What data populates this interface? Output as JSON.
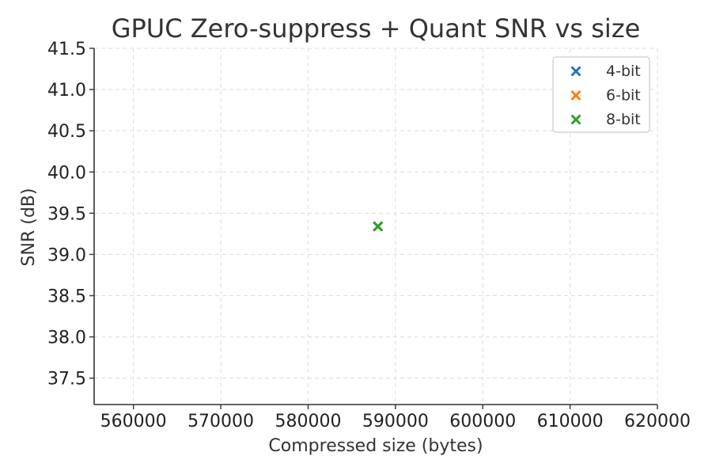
{
  "chart_data": {
    "type": "scatter",
    "title": "GPUC Zero-suppress + Quant SNR vs size",
    "xlabel": "Compressed size (bytes)",
    "ylabel": "SNR (dB)",
    "xlim": [
      555500,
      620000
    ],
    "ylim": [
      37.18,
      41.5
    ],
    "xticks": [
      560000,
      570000,
      580000,
      590000,
      600000,
      610000,
      620000
    ],
    "xtick_labels": [
      "560000",
      "570000",
      "580000",
      "590000",
      "600000",
      "610000",
      "620000"
    ],
    "yticks": [
      37.5,
      38.0,
      38.5,
      39.0,
      39.5,
      40.0,
      40.5,
      41.0,
      41.5
    ],
    "ytick_labels": [
      "37.5",
      "38.0",
      "38.5",
      "39.0",
      "39.5",
      "40.0",
      "40.5",
      "41.0",
      "41.5"
    ],
    "grid": true,
    "legend_position": "top-right",
    "marker": "x",
    "series": [
      {
        "name": "4-bit",
        "color": "#1f77b4",
        "points": [
          {
            "x": 588000,
            "y": 39.34
          }
        ]
      },
      {
        "name": "6-bit",
        "color": "#ff7f0e",
        "points": [
          {
            "x": 588000,
            "y": 39.34
          }
        ]
      },
      {
        "name": "8-bit",
        "color": "#2ca02c",
        "points": [
          {
            "x": 588000,
            "y": 39.34
          }
        ]
      }
    ]
  }
}
